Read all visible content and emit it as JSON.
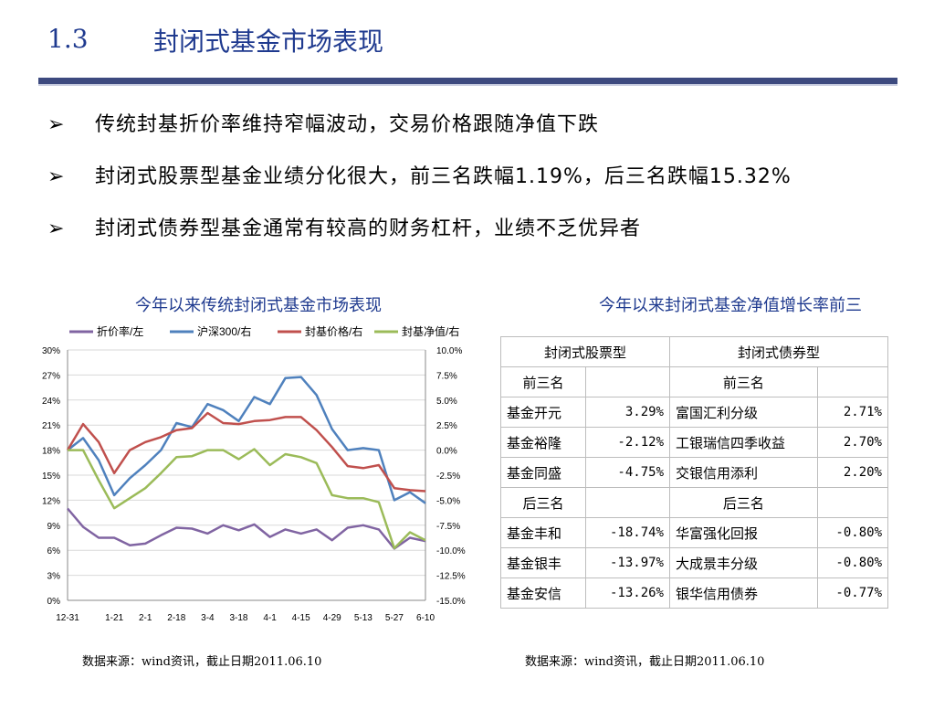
{
  "header": {
    "section_number": "1.3",
    "section_title": "封闭式基金市场表现"
  },
  "bullets": [
    {
      "arrow": "➢",
      "text": "传统封基折价率维持窄幅波动，交易价格跟随净值下跌"
    },
    {
      "arrow": "➢",
      "text": "封闭式股票型基金业绩分化很大，前三名跌幅1.19%，后三名跌幅15.32%"
    },
    {
      "arrow": "➢",
      "text": "封闭式债券型基金通常有较高的财务杠杆，业绩不乏优异者"
    }
  ],
  "left_chart_title": "今年以来传统封闭式基金市场表现",
  "right_table_title": "今年以来封闭式基金净值增长率前三",
  "chart_data": {
    "type": "line",
    "title": "今年以来传统封闭式基金市场表现",
    "x": [
      "12-31",
      "1-7",
      "1-14",
      "1-21",
      "1-28",
      "2-1",
      "2-11",
      "2-18",
      "2-25",
      "3-4",
      "3-11",
      "3-18",
      "3-25",
      "4-1",
      "4-8",
      "4-15",
      "4-22",
      "4-29",
      "5-6",
      "5-13",
      "5-20",
      "5-27",
      "6-3",
      "6-10"
    ],
    "x_tick_labels": [
      "12-31",
      "1-21",
      "2-1",
      "2-18",
      "3-4",
      "3-18",
      "4-1",
      "4-15",
      "4-29",
      "5-13",
      "5-27",
      "6-10"
    ],
    "left_axis": {
      "ylim": [
        0,
        30
      ],
      "ticks": [
        "0%",
        "3%",
        "6%",
        "9%",
        "12%",
        "15%",
        "18%",
        "21%",
        "24%",
        "27%",
        "30%"
      ]
    },
    "right_axis": {
      "ylim": [
        -15,
        10
      ],
      "ticks": [
        "-15.0%",
        "-12.5%",
        "-10.0%",
        "-7.5%",
        "-5.0%",
        "-2.5%",
        "0.0%",
        "2.5%",
        "5.0%",
        "7.5%",
        "10.0%"
      ]
    },
    "legend_position": "top",
    "series": [
      {
        "name": "折价率/左",
        "axis": "left",
        "color": "#8064a2",
        "values": [
          11.0,
          8.8,
          7.5,
          7.5,
          6.6,
          6.8,
          7.8,
          8.7,
          8.6,
          8.0,
          9.0,
          8.4,
          9.1,
          7.6,
          8.5,
          8.0,
          8.5,
          7.2,
          8.7,
          9.0,
          8.5,
          6.2,
          7.5,
          7.1
        ]
      },
      {
        "name": "沪深300/右",
        "axis": "right",
        "color": "#4f81bd",
        "values": [
          0.0,
          1.2,
          -1.0,
          -4.5,
          -2.8,
          -1.5,
          0.0,
          2.7,
          2.3,
          4.6,
          4.0,
          2.9,
          5.3,
          4.6,
          7.2,
          7.3,
          5.5,
          2.1,
          0.0,
          0.2,
          0.0,
          -5.0,
          -4.2,
          -5.3
        ]
      },
      {
        "name": "封基价格/右",
        "axis": "right",
        "color": "#c0504d",
        "values": [
          0.0,
          2.6,
          0.8,
          -2.3,
          0.0,
          0.8,
          1.3,
          2.0,
          2.2,
          3.7,
          2.7,
          2.6,
          2.9,
          3.0,
          3.3,
          3.3,
          2.0,
          0.3,
          -1.6,
          -1.8,
          -1.5,
          -3.8,
          -4.0,
          -4.1
        ]
      },
      {
        "name": "封基净值/右",
        "axis": "right",
        "color": "#9bbb59",
        "values": [
          0.0,
          0.0,
          -3.0,
          -5.8,
          -4.8,
          -3.8,
          -2.3,
          -0.7,
          -0.6,
          0.0,
          0.0,
          -0.9,
          0.1,
          -1.5,
          -0.4,
          -0.7,
          -1.3,
          -4.5,
          -4.8,
          -4.8,
          -5.2,
          -9.8,
          -8.2,
          -9.0
        ]
      }
    ]
  },
  "table": {
    "col_headers": [
      "封闭式股票型",
      "封闭式债券型"
    ],
    "groups": [
      {
        "label": "前三名",
        "rows": [
          {
            "stock_name": "基金开元",
            "stock_val": "3.29%",
            "bond_name": "富国汇利分级",
            "bond_val": "2.71%"
          },
          {
            "stock_name": "基金裕隆",
            "stock_val": "-2.12%",
            "bond_name": "工银瑞信四季收益",
            "bond_val": "2.70%"
          },
          {
            "stock_name": "基金同盛",
            "stock_val": "-4.75%",
            "bond_name": "交银信用添利",
            "bond_val": "2.20%"
          }
        ]
      },
      {
        "label": "后三名",
        "rows": [
          {
            "stock_name": "基金丰和",
            "stock_val": "-18.74%",
            "bond_name": "华富强化回报",
            "bond_val": "-0.80%"
          },
          {
            "stock_name": "基金银丰",
            "stock_val": "-13.97%",
            "bond_name": "大成景丰分级",
            "bond_val": "-0.80%"
          },
          {
            "stock_name": "基金安信",
            "stock_val": "-13.26%",
            "bond_name": "银华信用债券",
            "bond_val": "-0.77%"
          }
        ]
      }
    ]
  },
  "sources": {
    "left": "数据来源：wind资讯，截止日期2011.06.10",
    "right": "数据来源：wind资讯，截止日期2011.06.10"
  }
}
